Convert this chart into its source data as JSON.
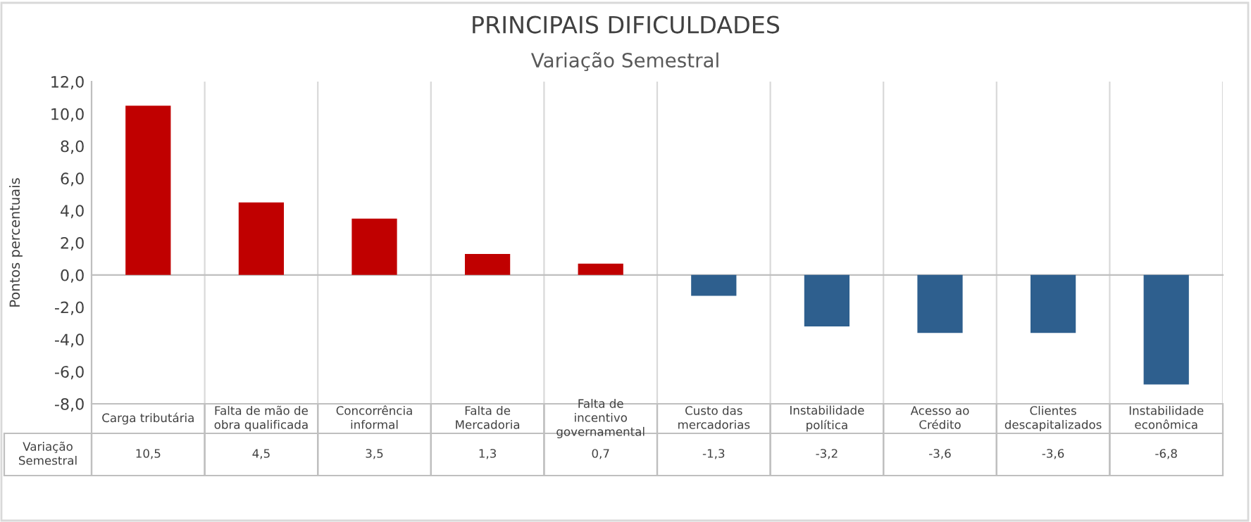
{
  "chart_data": {
    "type": "bar",
    "title": "PRINCIPAIS DIFICULDADES",
    "subtitle": "Variação Semestral",
    "ylabel": "Pontos percentuais",
    "categories": [
      "Carga tributária",
      "Falta de mão de obra qualificada",
      "Concorrência informal",
      "Falta de Mercadoria",
      "Falta de incentivo governamental",
      "Custo das mercadorias",
      "Instabilidade política",
      "Acesso ao Crédito",
      "Clientes descapitalizados",
      "Instabilidade econômica"
    ],
    "series": [
      {
        "name": "Variação Semestral",
        "values": [
          10.5,
          4.5,
          3.5,
          1.3,
          0.7,
          -1.3,
          -3.2,
          -3.6,
          -3.6,
          -6.8
        ],
        "colors": [
          "#c00000",
          "#c00000",
          "#c00000",
          "#c00000",
          "#c00000",
          "#2e5f8e",
          "#2e5f8e",
          "#2e5f8e",
          "#2e5f8e",
          "#2e5f8e"
        ],
        "value_labels": [
          "10,5",
          "4,5",
          "3,5",
          "1,3",
          "0,7",
          "-1,3",
          "-3,2",
          "-3,6",
          "-3,6",
          "-6,8"
        ]
      }
    ],
    "ylim": [
      -8,
      12
    ],
    "yticks": [
      {
        "value": -8,
        "label": "-8,0"
      },
      {
        "value": -6,
        "label": "-6,0"
      },
      {
        "value": -4,
        "label": "-4,0"
      },
      {
        "value": -2,
        "label": "-2,0"
      },
      {
        "value": 0,
        "label": "0,0"
      },
      {
        "value": 2,
        "label": "2,0"
      },
      {
        "value": 4,
        "label": "4,0"
      },
      {
        "value": 6,
        "label": "6,0"
      },
      {
        "value": 8,
        "label": "8,0"
      },
      {
        "value": 10,
        "label": "10,0"
      },
      {
        "value": 12,
        "label": "12,0"
      }
    ],
    "grid": false,
    "legend": false
  }
}
